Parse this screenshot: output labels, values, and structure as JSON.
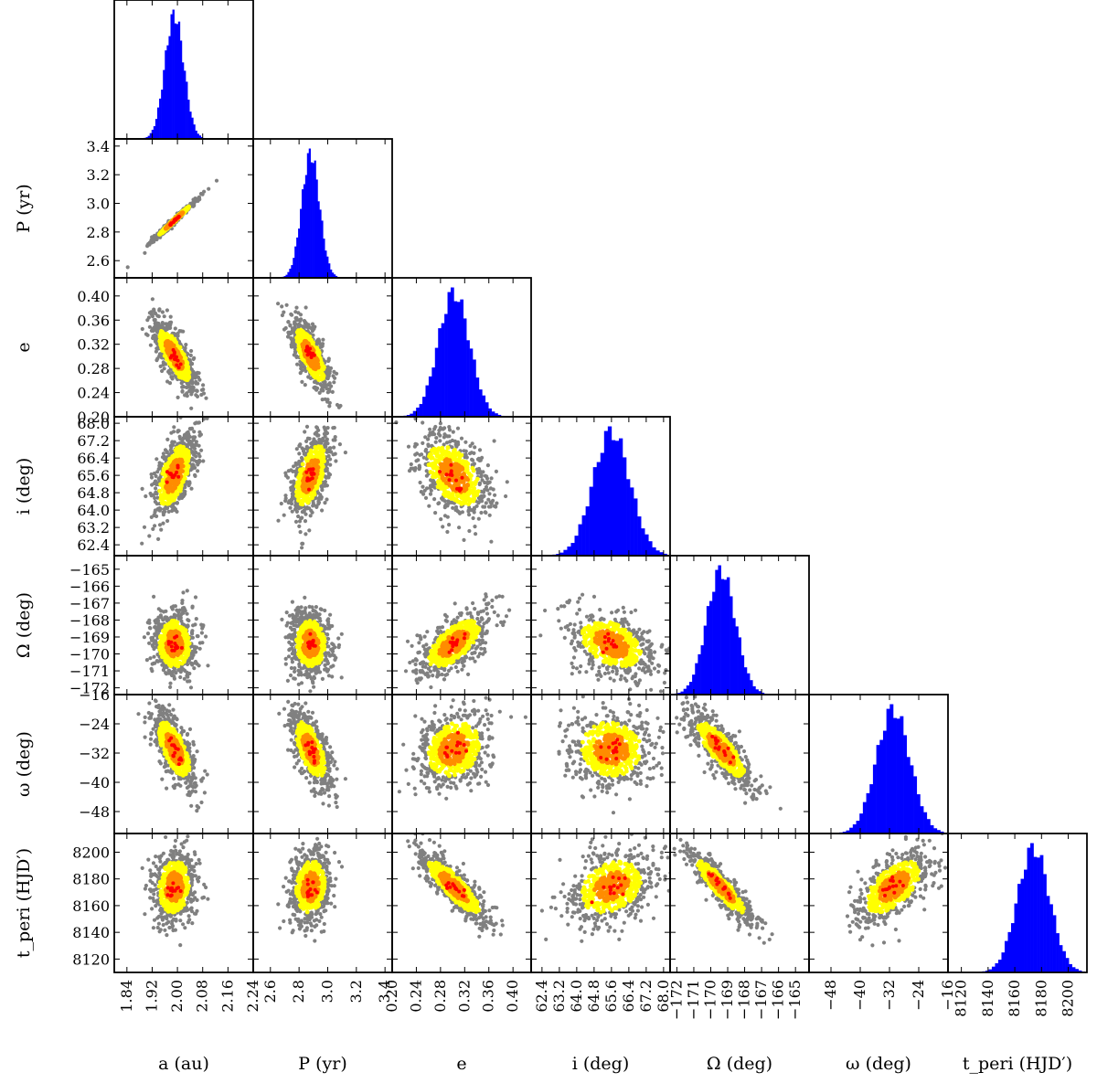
{
  "chart_data": {
    "type": "corner",
    "title": "",
    "parameters": [
      {
        "key": "a",
        "label": "a (au)",
        "ticks": [
          1.84,
          1.92,
          2.0,
          2.08,
          2.16,
          2.24
        ],
        "tick_labels": [
          "1.84",
          "1.92",
          "2.00",
          "2.08",
          "2.16",
          "2.24"
        ],
        "range": [
          1.8,
          2.24
        ],
        "median": 1.99,
        "sigma": 0.03
      },
      {
        "key": "P",
        "label": "P (yr)",
        "ticks": [
          2.6,
          2.8,
          3.0,
          3.2,
          3.4
        ],
        "tick_labels": [
          "2.6",
          "2.8",
          "3.0",
          "3.2",
          "3.4"
        ],
        "range": [
          2.48,
          3.45
        ],
        "median": 2.88,
        "sigma": 0.062
      },
      {
        "key": "e",
        "label": "e",
        "ticks": [
          0.2,
          0.24,
          0.28,
          0.32,
          0.36,
          0.4
        ],
        "tick_labels": [
          "0.20",
          "0.24",
          "0.28",
          "0.32",
          "0.36",
          "0.40"
        ],
        "range": [
          0.2,
          0.43
        ],
        "median": 0.302,
        "sigma": 0.026
      },
      {
        "key": "i",
        "label": "i (deg)",
        "ticks": [
          62.4,
          63.2,
          64.0,
          64.8,
          65.6,
          66.4,
          67.2,
          68.0
        ],
        "tick_labels": [
          "62.4",
          "63.2",
          "64.0",
          "64.8",
          "65.6",
          "66.4",
          "67.2",
          "68.0"
        ],
        "range": [
          61.9,
          68.3
        ],
        "median": 65.6,
        "sigma": 0.85
      },
      {
        "key": "Omega",
        "label": "Ω (deg)",
        "ticks": [
          -172,
          -171,
          -170,
          -169,
          -168,
          -167,
          -166,
          -165
        ],
        "tick_labels": [
          "−172",
          "−171",
          "−170",
          "−169",
          "−168",
          "−167",
          "−166",
          "−165"
        ],
        "range": [
          -172.4,
          -164.2
        ],
        "median": -169.4,
        "sigma": 0.85
      },
      {
        "key": "omega",
        "label": "ω (deg)",
        "ticks": [
          -48,
          -40,
          -32,
          -24,
          -16
        ],
        "tick_labels": [
          "−48",
          "−40",
          "−32",
          "−24",
          "−16"
        ],
        "range": [
          -54.0,
          -16.0
        ],
        "median": -31.0,
        "sigma": 4.6
      },
      {
        "key": "tperi",
        "label": "t_peri (HJD′)",
        "ticks": [
          8120,
          8140,
          8160,
          8180,
          8200
        ],
        "tick_labels": [
          "8120",
          "8140",
          "8160",
          "8180",
          "8200"
        ],
        "range": [
          8110,
          8214
        ],
        "median": 8174,
        "sigma": 12.0
      }
    ],
    "correlations": [
      [
        1.0,
        0.99,
        -0.75,
        0.55,
        -0.05,
        -0.65,
        0.1
      ],
      [
        0.99,
        1.0,
        -0.72,
        0.55,
        -0.05,
        -0.62,
        0.12
      ],
      [
        -0.75,
        -0.72,
        1.0,
        -0.45,
        0.65,
        0.2,
        -0.85
      ],
      [
        0.55,
        0.55,
        -0.45,
        1.0,
        -0.4,
        -0.05,
        0.3
      ],
      [
        -0.05,
        -0.05,
        0.65,
        -0.4,
        1.0,
        -0.82,
        -0.9
      ],
      [
        -0.65,
        -0.62,
        0.2,
        -0.05,
        -0.82,
        1.0,
        0.6
      ],
      [
        0.1,
        0.12,
        -0.85,
        0.3,
        -0.9,
        0.6,
        1.0
      ]
    ],
    "histogram_color": "#0000ff",
    "density_colors": {
      "outer": "#808080",
      "mid": "#ffff00",
      "inner": "#ff8c00",
      "best": "#ff0000"
    },
    "n_bins": 40
  }
}
